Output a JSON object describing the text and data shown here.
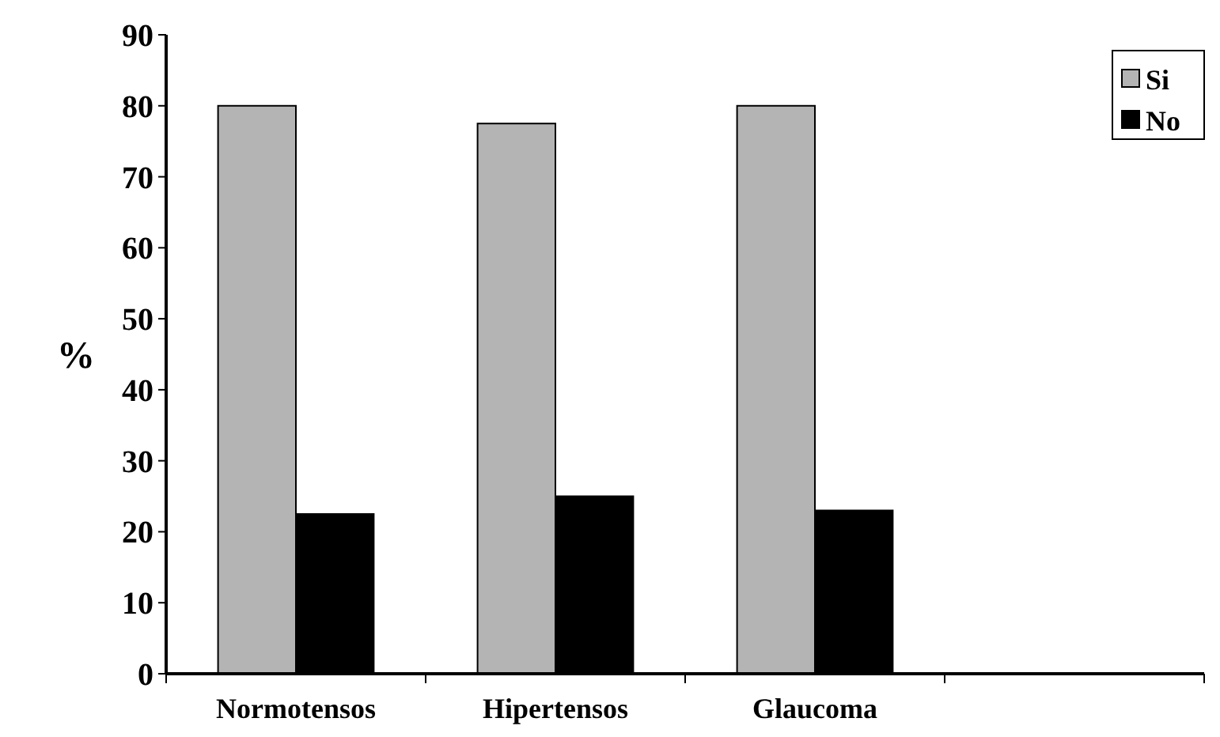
{
  "chart_data": {
    "type": "bar",
    "ylabel": "%",
    "categories": [
      "Normotensos",
      "Hipertensos",
      "Glaucoma",
      null
    ],
    "series": [
      {
        "name": "Si",
        "color": "#b4b4b4",
        "values": [
          80,
          77.5,
          80,
          null
        ]
      },
      {
        "name": "No",
        "color": "#000000",
        "values": [
          22.5,
          25,
          23,
          null
        ]
      }
    ],
    "ylim": [
      0,
      90
    ],
    "yticks": [
      0,
      10,
      20,
      30,
      40,
      50,
      60,
      70,
      80,
      90
    ],
    "legend": "top right"
  }
}
